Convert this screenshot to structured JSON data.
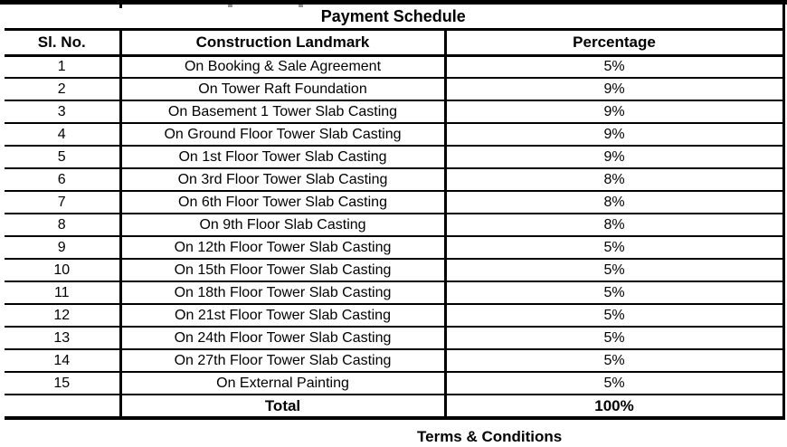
{
  "page": {
    "title": "Payment Schedule",
    "footer_heading": "Terms & Conditions"
  },
  "table": {
    "columns": [
      "Sl. No.",
      "Construction Landmark",
      "Percentage"
    ],
    "rows": [
      [
        "1",
        "On Booking & Sale Agreement",
        "5%"
      ],
      [
        "2",
        "On Tower Raft Foundation",
        "9%"
      ],
      [
        "3",
        "On Basement 1 Tower Slab Casting",
        "9%"
      ],
      [
        "4",
        "On Ground Floor Tower Slab Casting",
        "9%"
      ],
      [
        "5",
        "On 1st Floor Tower Slab Casting",
        "9%"
      ],
      [
        "6",
        "On 3rd Floor Tower Slab Casting",
        "8%"
      ],
      [
        "7",
        "On 6th Floor Tower Slab Casting",
        "8%"
      ],
      [
        "8",
        "On 9th Floor Slab Casting",
        "8%"
      ],
      [
        "9",
        "On 12th Floor Tower Slab Casting",
        "5%"
      ],
      [
        "10",
        "On 15th Floor Tower Slab Casting",
        "5%"
      ],
      [
        "11",
        "On 18th Floor Tower Slab Casting",
        "5%"
      ],
      [
        "12",
        "On 21st Floor Tower Slab Casting",
        "5%"
      ],
      [
        "13",
        "On 24th Floor Tower Slab Casting",
        "5%"
      ],
      [
        "14",
        "On 27th Floor Tower Slab Casting",
        "5%"
      ],
      [
        "15",
        "On External Painting",
        "5%"
      ]
    ],
    "total_label": "Total",
    "total_value": "100%"
  },
  "colors": {
    "border": "#000000",
    "text": "#000000",
    "background": "#ffffff"
  }
}
